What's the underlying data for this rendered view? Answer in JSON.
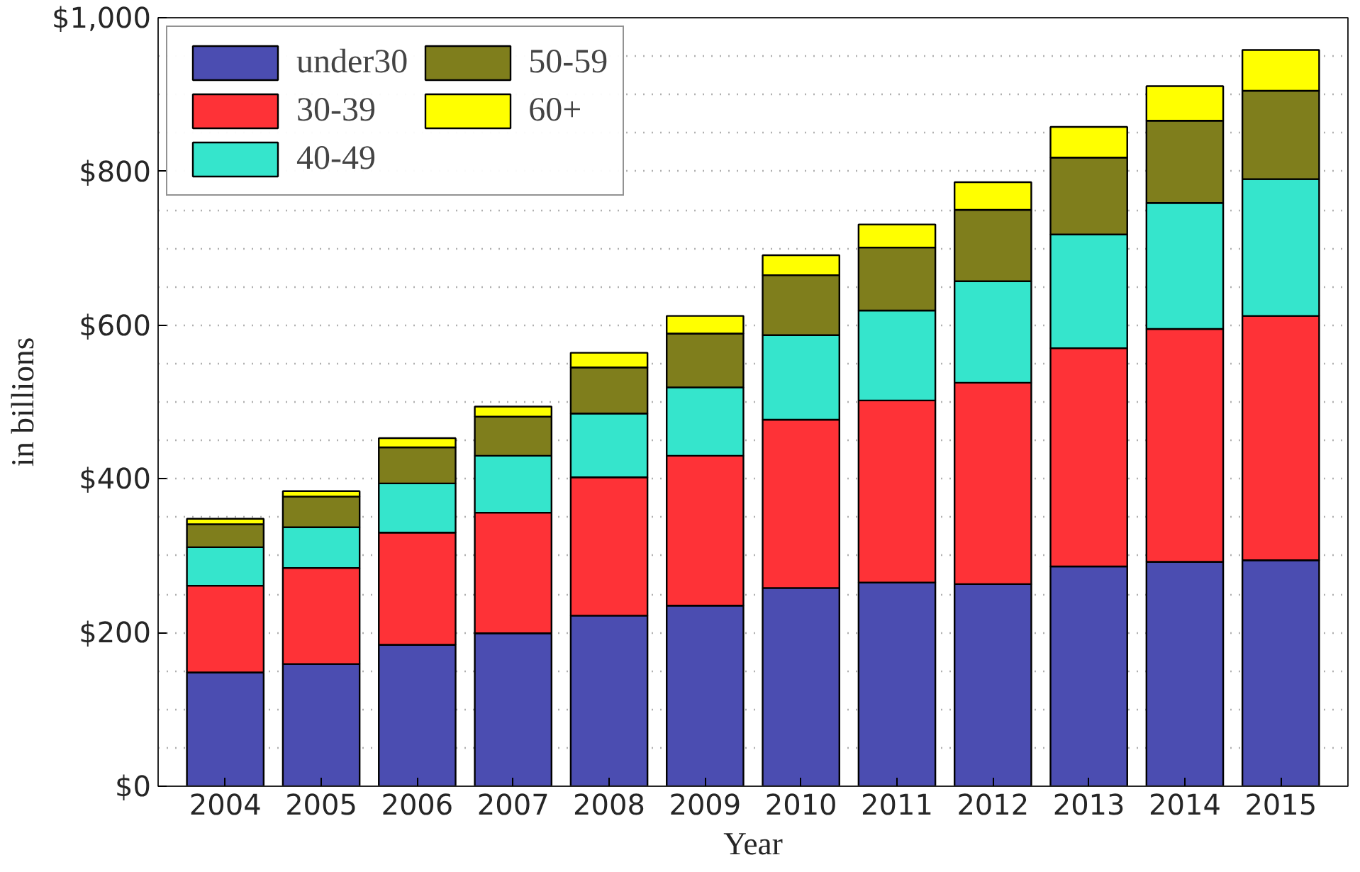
{
  "chart_data": {
    "type": "bar",
    "stacked": true,
    "xlabel": "Year",
    "ylabel": "in billions",
    "categories": [
      "2004",
      "2005",
      "2006",
      "2007",
      "2008",
      "2009",
      "2010",
      "2011",
      "2012",
      "2013",
      "2014",
      "2015"
    ],
    "series": [
      {
        "name": "under30",
        "color": "#4b4db1",
        "values": [
          148,
          159,
          184,
          199,
          222,
          235,
          258,
          265,
          263,
          286,
          292,
          294
        ]
      },
      {
        "name": "30-39",
        "color": "#fe3237",
        "values": [
          113,
          125,
          146,
          157,
          180,
          195,
          219,
          237,
          262,
          284,
          303,
          318
        ]
      },
      {
        "name": "40-49",
        "color": "#35e5cc",
        "values": [
          50,
          53,
          64,
          74,
          83,
          89,
          110,
          117,
          132,
          148,
          164,
          178
        ]
      },
      {
        "name": "50-59",
        "color": "#7f7e1c",
        "values": [
          30,
          40,
          47,
          51,
          60,
          70,
          78,
          82,
          93,
          100,
          107,
          115
        ]
      },
      {
        "name": "60+",
        "color": "#ffff00",
        "values": [
          7,
          7,
          12,
          13,
          19,
          23,
          26,
          30,
          36,
          40,
          45,
          53
        ]
      }
    ],
    "ylim": [
      0,
      1000
    ],
    "yticks": [
      {
        "value": 0,
        "label": "$0"
      },
      {
        "value": 200,
        "label": "$200"
      },
      {
        "value": 400,
        "label": "$400"
      },
      {
        "value": 600,
        "label": "$600"
      },
      {
        "value": 800,
        "label": "$800"
      },
      {
        "value": 1000,
        "label": "$1,000"
      }
    ],
    "grid": true,
    "legend": "top left"
  }
}
